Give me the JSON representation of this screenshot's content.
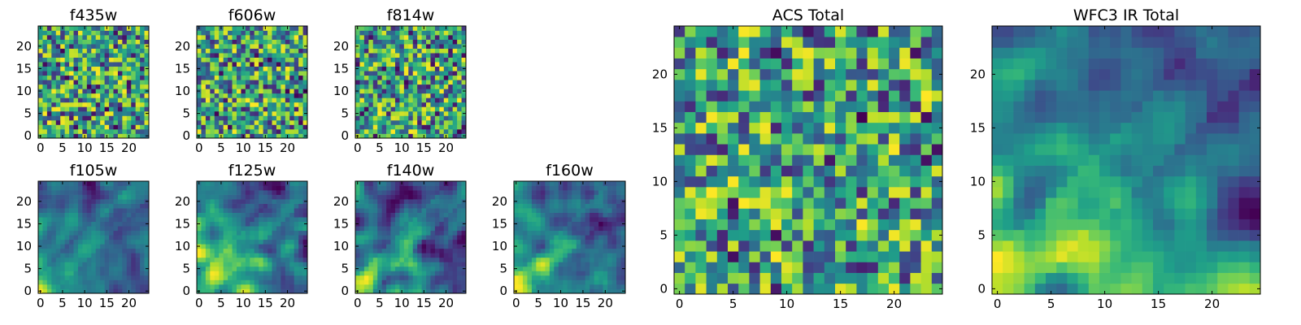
{
  "figure": {
    "panels": [
      {
        "title": "f435w",
        "xticks": [
          "0",
          "5",
          "10",
          "15",
          "20"
        ],
        "yticks": [
          "0",
          "5",
          "10",
          "15",
          "20"
        ]
      },
      {
        "title": "f606w",
        "xticks": [
          "0",
          "5",
          "10",
          "15",
          "20"
        ],
        "yticks": [
          "0",
          "5",
          "10",
          "15",
          "20"
        ]
      },
      {
        "title": "f814w",
        "xticks": [
          "0",
          "5",
          "10",
          "15",
          "20"
        ],
        "yticks": [
          "0",
          "5",
          "10",
          "15",
          "20"
        ]
      },
      {
        "title": "f105w",
        "xticks": [
          "0",
          "5",
          "10",
          "15",
          "20"
        ],
        "yticks": [
          "0",
          "5",
          "10",
          "15",
          "20"
        ]
      },
      {
        "title": "f125w",
        "xticks": [
          "0",
          "5",
          "10",
          "15",
          "20"
        ],
        "yticks": [
          "0",
          "5",
          "10",
          "15",
          "20"
        ]
      },
      {
        "title": "f140w",
        "xticks": [
          "0",
          "5",
          "10",
          "15",
          "20"
        ],
        "yticks": [
          "0",
          "5",
          "10",
          "15",
          "20"
        ]
      },
      {
        "title": "f160w",
        "xticks": [
          "0",
          "5",
          "10",
          "15",
          "20"
        ],
        "yticks": [
          "0",
          "5",
          "10",
          "15",
          "20"
        ]
      },
      {
        "title": "ACS Total",
        "xticks": [
          "0",
          "5",
          "10",
          "15",
          "20"
        ],
        "yticks": [
          "0",
          "5",
          "10",
          "15",
          "20"
        ]
      },
      {
        "title": "WFC3 IR Total",
        "xticks": [
          "0",
          "5",
          "10",
          "15",
          "20"
        ],
        "yticks": [
          "0",
          "5",
          "10",
          "15",
          "20"
        ]
      }
    ]
  },
  "chart_data": [
    {
      "type": "heatmap",
      "title": "f435w",
      "xlim": [
        -0.5,
        24.5
      ],
      "ylim": [
        -0.5,
        24.5
      ],
      "grid_size": [
        25,
        25
      ],
      "colormap": "viridis",
      "pattern": "uncorrelated noise",
      "grid": false
    },
    {
      "type": "heatmap",
      "title": "f606w",
      "xlim": [
        -0.5,
        24.5
      ],
      "ylim": [
        -0.5,
        24.5
      ],
      "grid_size": [
        25,
        25
      ],
      "colormap": "viridis",
      "pattern": "uncorrelated noise",
      "grid": false
    },
    {
      "type": "heatmap",
      "title": "f814w",
      "xlim": [
        -0.5,
        24.5
      ],
      "ylim": [
        -0.5,
        24.5
      ],
      "grid_size": [
        25,
        25
      ],
      "colormap": "viridis",
      "pattern": "uncorrelated noise",
      "grid": false
    },
    {
      "type": "heatmap",
      "title": "f105w",
      "xlim": [
        -0.5,
        24.5
      ],
      "ylim": [
        -0.5,
        24.5
      ],
      "grid_size": [
        25,
        25
      ],
      "colormap": "viridis",
      "pattern": "correlated noise",
      "grid": false
    },
    {
      "type": "heatmap",
      "title": "f125w",
      "xlim": [
        -0.5,
        24.5
      ],
      "ylim": [
        -0.5,
        24.5
      ],
      "grid_size": [
        25,
        25
      ],
      "colormap": "viridis",
      "pattern": "correlated noise",
      "grid": false
    },
    {
      "type": "heatmap",
      "title": "f140w",
      "xlim": [
        -0.5,
        24.5
      ],
      "ylim": [
        -0.5,
        24.5
      ],
      "grid_size": [
        25,
        25
      ],
      "colormap": "viridis",
      "pattern": "correlated noise",
      "grid": false
    },
    {
      "type": "heatmap",
      "title": "f160w",
      "xlim": [
        -0.5,
        24.5
      ],
      "ylim": [
        -0.5,
        24.5
      ],
      "grid_size": [
        25,
        25
      ],
      "colormap": "viridis",
      "pattern": "correlated noise",
      "grid": false
    },
    {
      "type": "heatmap",
      "title": "ACS Total",
      "xlim": [
        -0.5,
        24.5
      ],
      "ylim": [
        -0.5,
        24.5
      ],
      "grid_size": [
        25,
        25
      ],
      "colormap": "viridis",
      "pattern": "uncorrelated noise",
      "grid": false
    },
    {
      "type": "heatmap",
      "title": "WFC3 IR Total",
      "xlim": [
        -0.5,
        24.5
      ],
      "ylim": [
        -0.5,
        24.5
      ],
      "grid_size": [
        25,
        25
      ],
      "colormap": "viridis",
      "pattern": "correlated noise",
      "grid": false
    }
  ]
}
